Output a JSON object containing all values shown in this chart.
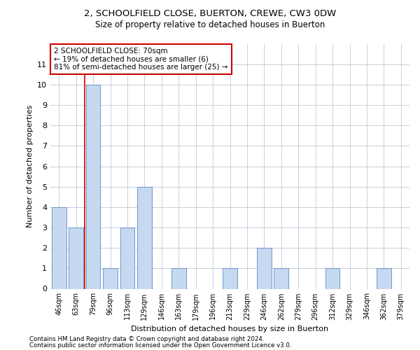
{
  "title1": "2, SCHOOLFIELD CLOSE, BUERTON, CREWE, CW3 0DW",
  "title2": "Size of property relative to detached houses in Buerton",
  "xlabel": "Distribution of detached houses by size in Buerton",
  "ylabel": "Number of detached properties",
  "categories": [
    "46sqm",
    "63sqm",
    "79sqm",
    "96sqm",
    "113sqm",
    "129sqm",
    "146sqm",
    "163sqm",
    "179sqm",
    "196sqm",
    "213sqm",
    "229sqm",
    "246sqm",
    "262sqm",
    "279sqm",
    "296sqm",
    "312sqm",
    "329sqm",
    "346sqm",
    "362sqm",
    "379sqm"
  ],
  "values": [
    4,
    3,
    10,
    1,
    3,
    5,
    0,
    1,
    0,
    0,
    1,
    0,
    2,
    1,
    0,
    0,
    1,
    0,
    0,
    1,
    0
  ],
  "bar_color": "#c6d9f0",
  "bar_edge_color": "#5a8ac6",
  "subject_line_color": "#cc0000",
  "annotation_text": "2 SCHOOLFIELD CLOSE: 70sqm\n← 19% of detached houses are smaller (6)\n81% of semi-detached houses are larger (25) →",
  "annotation_box_color": "#ffffff",
  "annotation_box_edge": "#cc0000",
  "ylim": [
    0,
    12
  ],
  "yticks": [
    0,
    1,
    2,
    3,
    4,
    5,
    6,
    7,
    8,
    9,
    10,
    11,
    12
  ],
  "footer1": "Contains HM Land Registry data © Crown copyright and database right 2024.",
  "footer2": "Contains public sector information licensed under the Open Government Licence v3.0.",
  "bg_color": "#ffffff",
  "grid_color": "#c0c8d8"
}
